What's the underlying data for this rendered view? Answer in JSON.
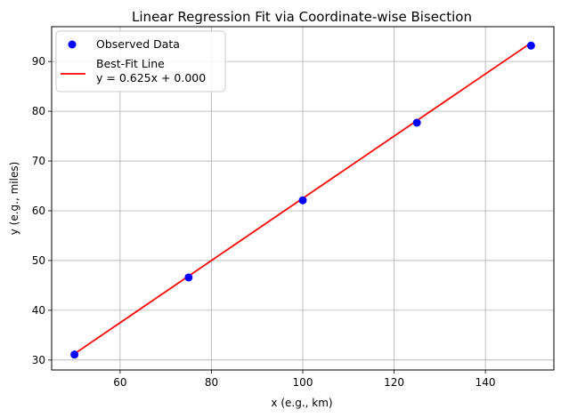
{
  "chart_data": {
    "type": "scatter",
    "title": "Linear Regression Fit via Coordinate-wise Bisection",
    "xlabel": "x (e.g., km)",
    "ylabel": "y (e.g., miles)",
    "xlim": [
      45,
      155
    ],
    "ylim": [
      28,
      97
    ],
    "grid": true,
    "xticks": [
      60,
      80,
      100,
      120,
      140
    ],
    "yticks": [
      30,
      40,
      50,
      60,
      70,
      80,
      90
    ],
    "series": [
      {
        "name": "Observed Data",
        "kind": "scatter",
        "color": "#0000ff",
        "x": [
          50,
          75,
          100,
          125,
          150
        ],
        "y": [
          31.1,
          46.6,
          62.1,
          77.7,
          93.2
        ]
      },
      {
        "name": "Best-Fit Line",
        "kind": "line",
        "color": "#ff0000",
        "slope": 0.625,
        "intercept": 0.0,
        "x": [
          50,
          150
        ]
      }
    ],
    "legend": {
      "position": "upper-left",
      "entries": [
        {
          "label": "Observed Data",
          "marker": "dot",
          "color": "#0000ff"
        },
        {
          "label": "Best-Fit Line",
          "sublabel": "y = 0.625x + 0.000",
          "marker": "line",
          "color": "#ff0000"
        }
      ]
    }
  }
}
